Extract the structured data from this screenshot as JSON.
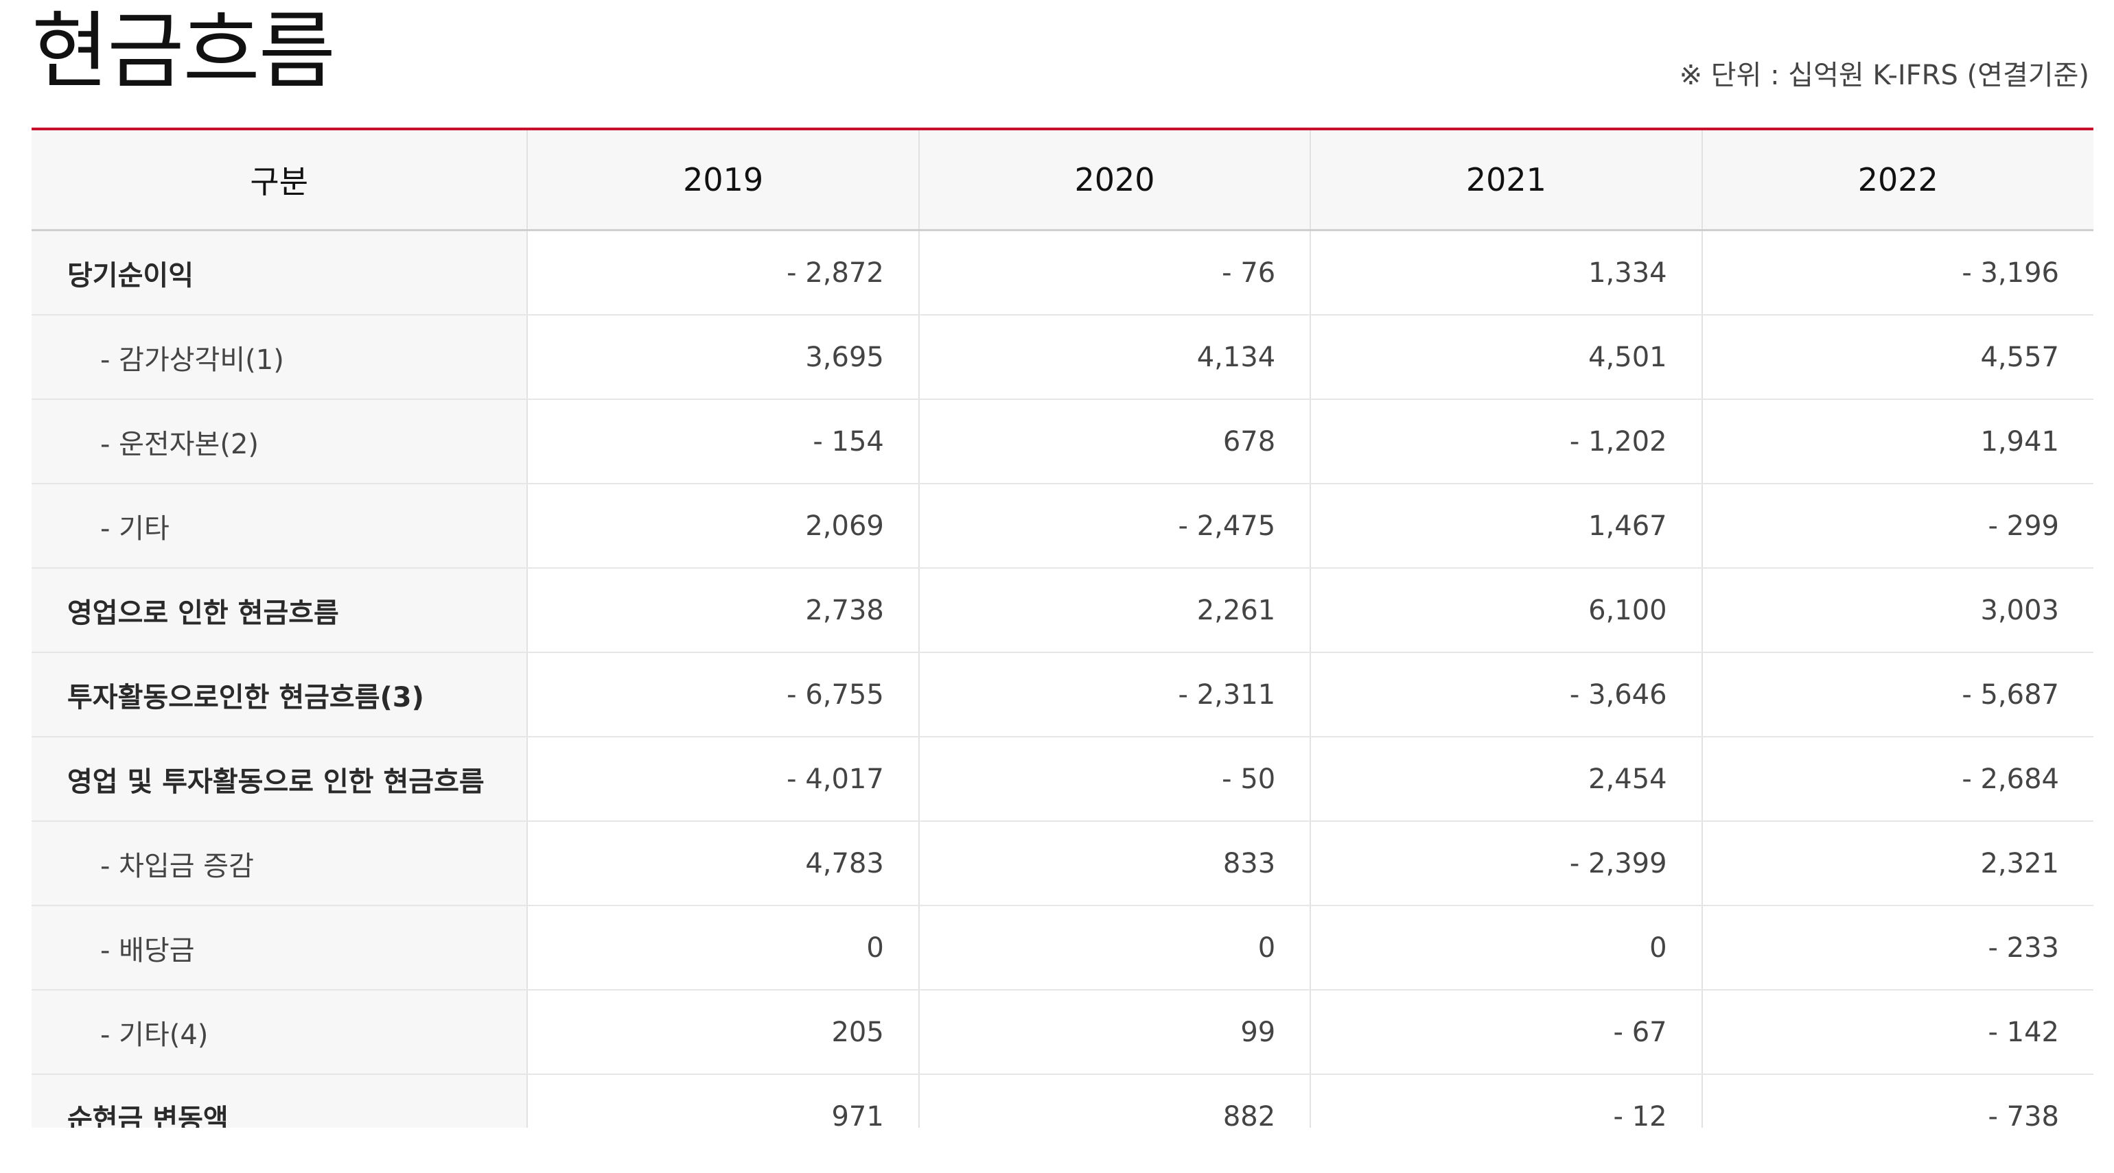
{
  "page": {
    "title": "현금흐름",
    "unit_note": "※ 단위 : 십억원 K-IFRS (연결기준)"
  },
  "table": {
    "header": {
      "label": "구분",
      "years": [
        "2019",
        "2020",
        "2021",
        "2022"
      ]
    },
    "rows": [
      {
        "label": "당기순이익",
        "style": "bold",
        "values": [
          "- 2,872",
          "- 76",
          "1,334",
          "- 3,196"
        ]
      },
      {
        "label": "- 감가상각비(1)",
        "style": "indent",
        "values": [
          "3,695",
          "4,134",
          "4,501",
          "4,557"
        ]
      },
      {
        "label": "- 운전자본(2)",
        "style": "indent",
        "values": [
          "- 154",
          "678",
          "- 1,202",
          "1,941"
        ]
      },
      {
        "label": "- 기타",
        "style": "indent",
        "values": [
          "2,069",
          "- 2,475",
          "1,467",
          "- 299"
        ]
      },
      {
        "label": "영업으로 인한 현금흐름",
        "style": "bold",
        "values": [
          "2,738",
          "2,261",
          "6,100",
          "3,003"
        ]
      },
      {
        "label": "투자활동으로인한 현금흐름(3)",
        "style": "bold",
        "values": [
          "- 6,755",
          "- 2,311",
          "- 3,646",
          "- 5,687"
        ]
      },
      {
        "label": "영업 및 투자활동으로 인한 현금흐름",
        "style": "bold",
        "values": [
          "- 4,017",
          "- 50",
          "2,454",
          "- 2,684"
        ]
      },
      {
        "label": "- 차입금 증감",
        "style": "indent",
        "values": [
          "4,783",
          "833",
          "- 2,399",
          "2,321"
        ]
      },
      {
        "label": "- 배당금",
        "style": "indent",
        "values": [
          "0",
          "0",
          "0",
          "- 233"
        ]
      },
      {
        "label": "- 기타(4)",
        "style": "indent",
        "values": [
          "205",
          "99",
          "- 67",
          "- 142"
        ]
      },
      {
        "label": "순현금 변동액",
        "style": "bold",
        "values": [
          "971",
          "882",
          "- 12",
          "- 738"
        ]
      }
    ]
  }
}
